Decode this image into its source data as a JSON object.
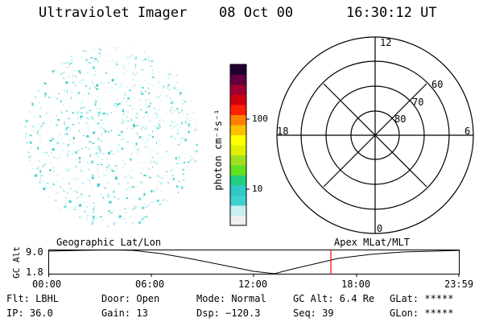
{
  "header": {
    "title": "Ultraviolet Imager",
    "date": "08 Oct 00",
    "time": "16:30:12 UT"
  },
  "colorbar": {
    "unit_label": "photon cm⁻²s⁻¹",
    "ticks": [
      "100",
      "10"
    ],
    "colors": [
      "#f0f0f0",
      "#c8f0f0",
      "#40d0d0",
      "#30c8c8",
      "#20d080",
      "#60e020",
      "#a0e020",
      "#e0f000",
      "#ffff00",
      "#ffc000",
      "#ff8000",
      "#ff2000",
      "#d00010",
      "#a00030",
      "#600040",
      "#200030"
    ]
  },
  "polar": {
    "mlt_labels": {
      "top": "12",
      "bottom": "0",
      "left": "18",
      "right": "6"
    },
    "lat_labels": [
      "60",
      "70",
      "80"
    ]
  },
  "timeline": {
    "left_title": "Geographic Lat/Lon",
    "right_title": "Apex MLat/MLT",
    "axis_label": "GC Alt",
    "y_ticks": [
      "9.0",
      "1.8"
    ],
    "x_ticks": [
      "00:00",
      "06:00",
      "12:00",
      "18:00",
      "23:59"
    ],
    "marker_color": "#ff0000"
  },
  "info": {
    "col1": [
      "Flt: LBHL",
      "IP: 36.0"
    ],
    "col2": [
      "Door: Open",
      "Gain: 13"
    ],
    "col3": [
      "Mode: Normal",
      "Dsp: −120.3"
    ],
    "col4": [
      "GC Alt: 6.4 Re",
      "Seq: 39"
    ],
    "col5": [
      "GLat: *****",
      "GLon: *****"
    ]
  }
}
